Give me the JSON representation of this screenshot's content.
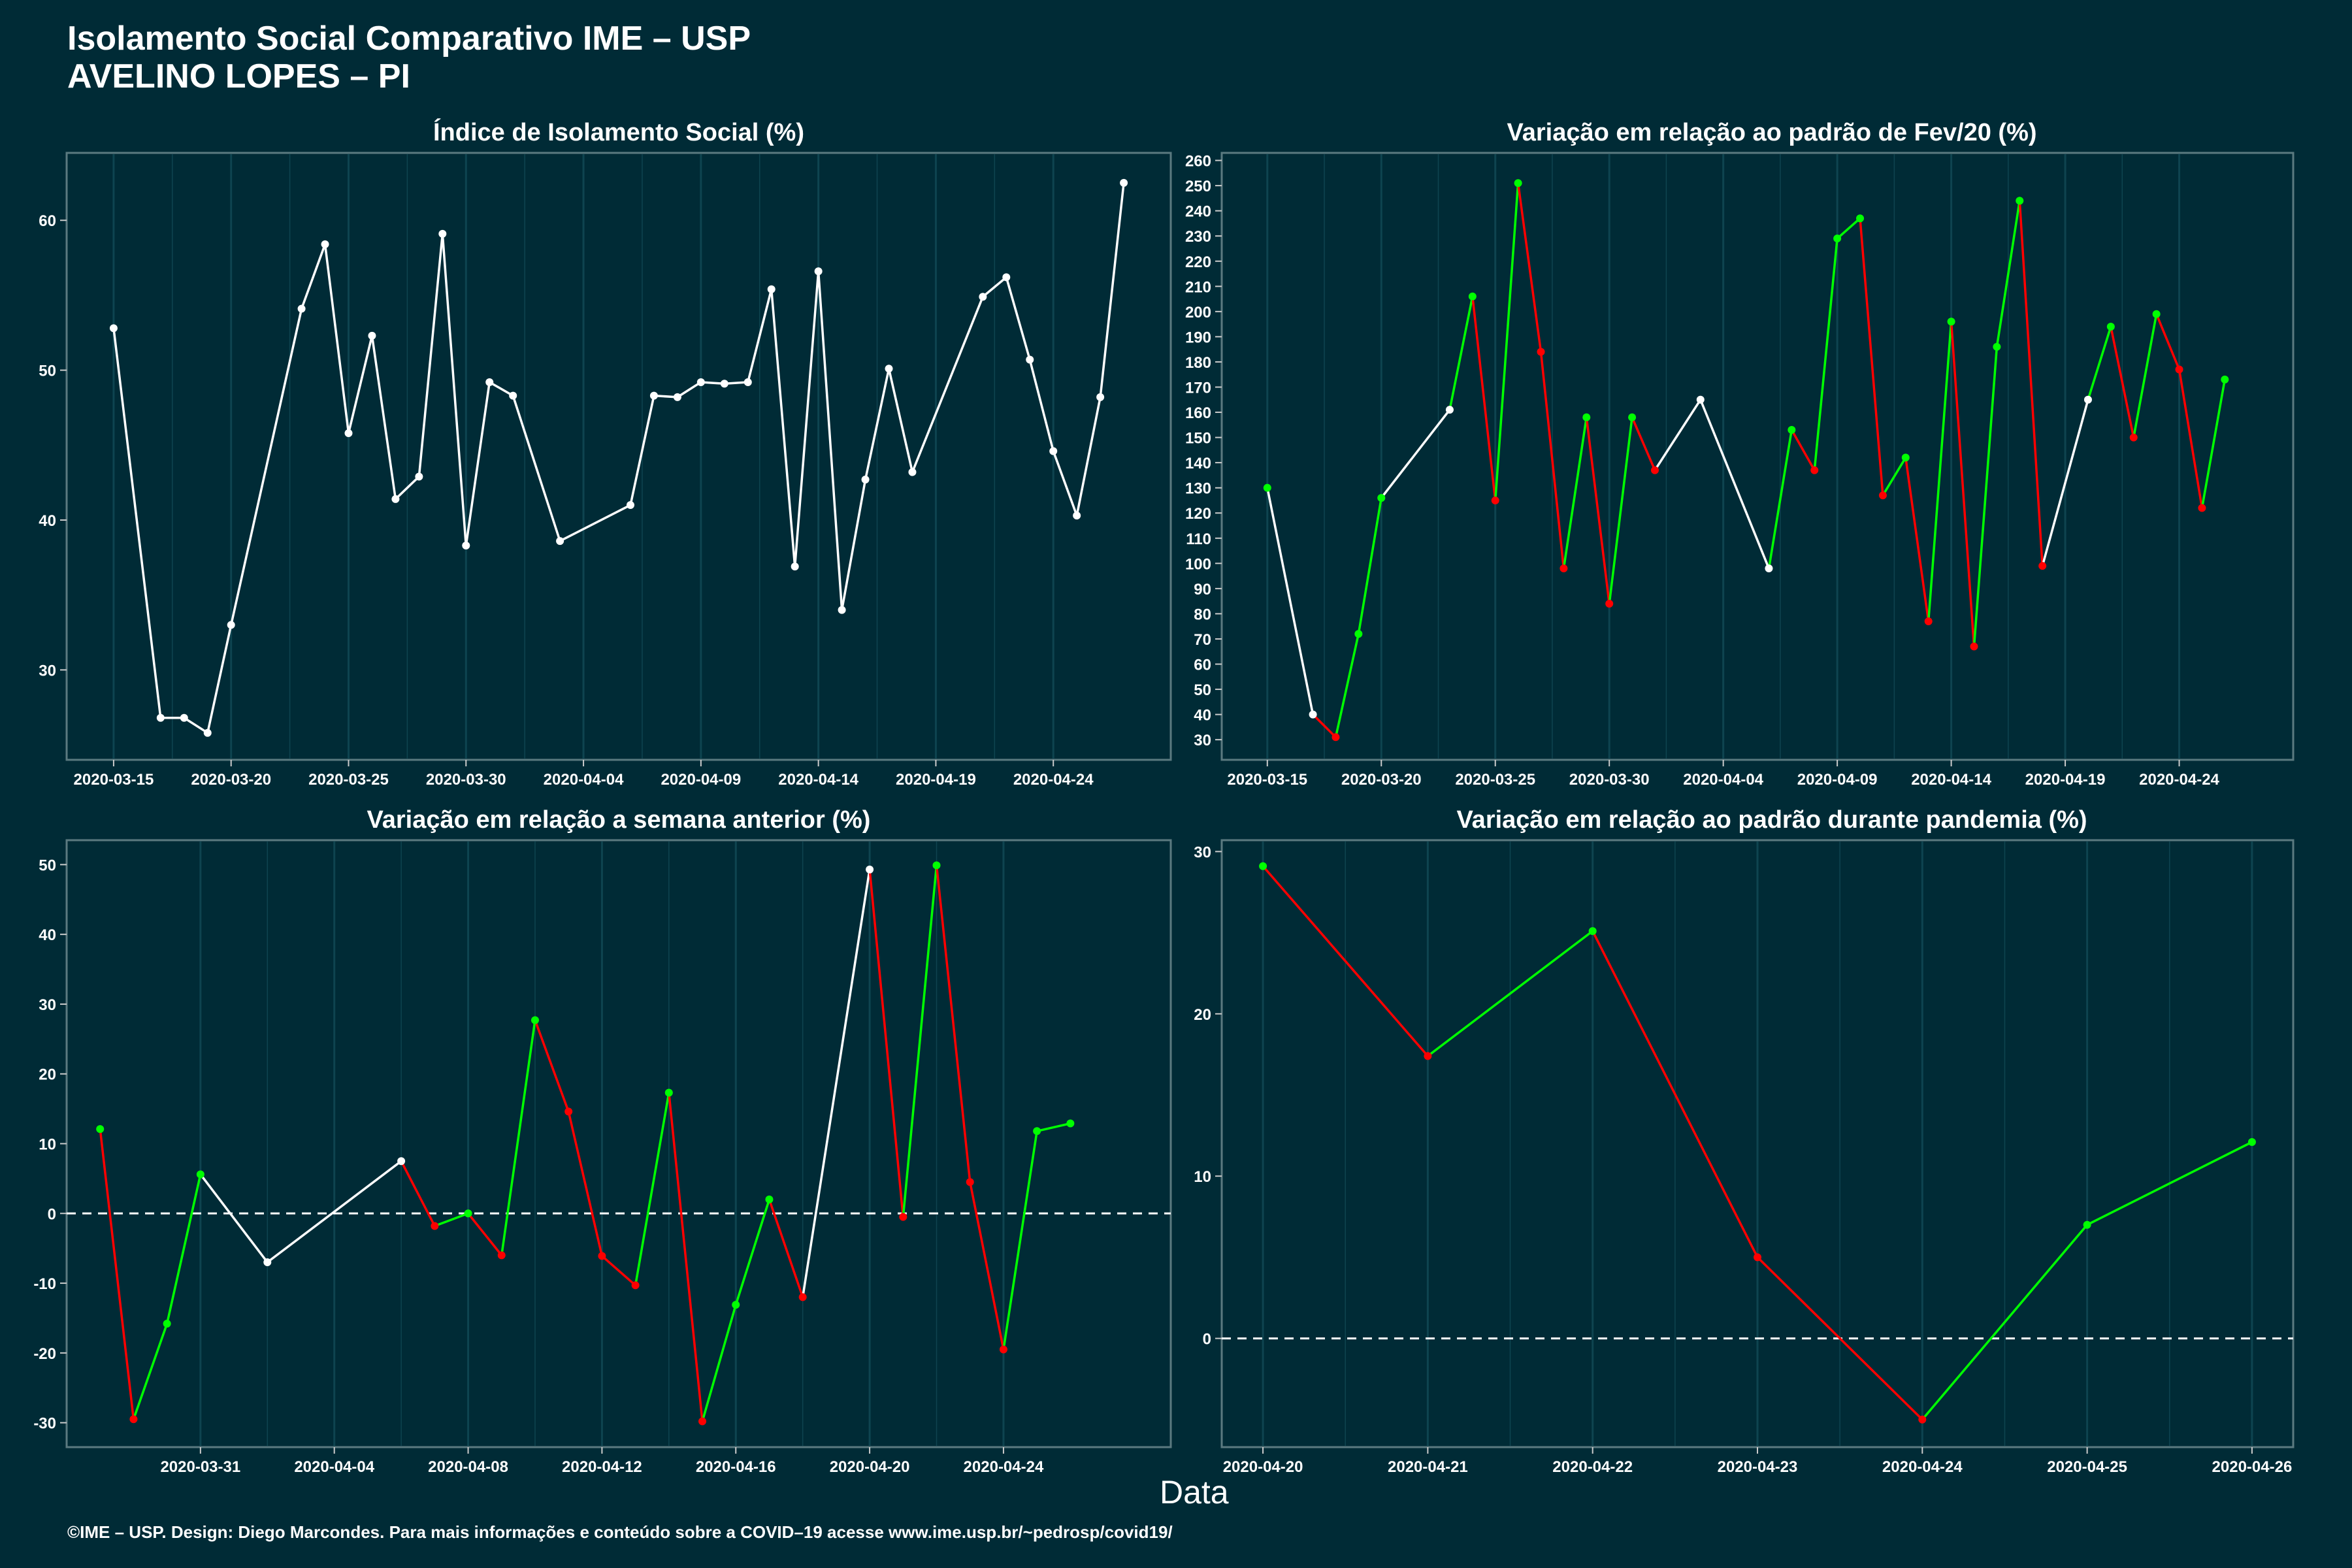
{
  "header": {
    "title": "Isolamento Social Comparativo IME – USP",
    "subtitle": "AVELINO LOPES – PI"
  },
  "x_caption": "Data",
  "footer": "©IME – USP. Design: Diego Marcondes. Para mais informações e conteúdo sobre a COVID–19 acesse www.ime.usp.br/~pedrosp/covid19/",
  "colors": {
    "background": "#002b36",
    "up": "#00ff00",
    "down": "#ff0000",
    "neutral": "#ffffff",
    "grid": "#0e4450"
  },
  "chart_data": [
    {
      "type": "line",
      "title": "Índice de Isolamento Social (%)",
      "xlabel": "",
      "ylabel": "",
      "xlim": [
        "2020-03-13",
        "2020-04-29"
      ],
      "ylim": [
        24,
        64.5
      ],
      "yticks": [
        30,
        40,
        50,
        60
      ],
      "xticks": [
        "2020-03-15",
        "2020-03-20",
        "2020-03-25",
        "2020-03-30",
        "2020-04-04",
        "2020-04-09",
        "2020-04-14",
        "2020-04-19",
        "2020-04-24"
      ],
      "colored": false,
      "points": [
        [
          "2020-03-15",
          52.8
        ],
        [
          "2020-03-17",
          26.8
        ],
        [
          "2020-03-18",
          26.8
        ],
        [
          "2020-03-19",
          25.8
        ],
        [
          "2020-03-20",
          33.0
        ],
        [
          "2020-03-23",
          54.1
        ],
        [
          "2020-03-24",
          58.4
        ],
        [
          "2020-03-25",
          45.8
        ],
        [
          "2020-03-26",
          52.3
        ],
        [
          "2020-03-27",
          41.4
        ],
        [
          "2020-03-28",
          42.9
        ],
        [
          "2020-03-29",
          59.1
        ],
        [
          "2020-03-30",
          38.3
        ],
        [
          "2020-03-31",
          49.2
        ],
        [
          "2020-04-01",
          48.3
        ],
        [
          "2020-04-03",
          38.6
        ],
        [
          "2020-04-06",
          41.0
        ],
        [
          "2020-04-07",
          48.3
        ],
        [
          "2020-04-08",
          48.2
        ],
        [
          "2020-04-09",
          49.2
        ],
        [
          "2020-04-10",
          49.1
        ],
        [
          "2020-04-11",
          49.2
        ],
        [
          "2020-04-12",
          55.4
        ],
        [
          "2020-04-13",
          36.9
        ],
        [
          "2020-04-14",
          56.6
        ],
        [
          "2020-04-15",
          34.0
        ],
        [
          "2020-04-16",
          42.7
        ],
        [
          "2020-04-17",
          50.1
        ],
        [
          "2020-04-18",
          43.2
        ],
        [
          "2020-04-21",
          54.9
        ],
        [
          "2020-04-22",
          56.2
        ],
        [
          "2020-04-23",
          50.7
        ],
        [
          "2020-04-24",
          44.6
        ],
        [
          "2020-04-25",
          40.3
        ],
        [
          "2020-04-26",
          48.2
        ],
        [
          "2020-04-27",
          62.5
        ]
      ]
    },
    {
      "type": "line",
      "title": "Variação em relação ao padrão de Fev/20 (%)",
      "xlabel": "",
      "ylabel": "",
      "xlim": [
        "2020-03-13",
        "2020-04-29"
      ],
      "ylim": [
        22,
        263
      ],
      "yticks": [
        30,
        40,
        50,
        60,
        70,
        80,
        90,
        100,
        110,
        120,
        130,
        140,
        150,
        160,
        170,
        180,
        190,
        200,
        210,
        220,
        230,
        240,
        250,
        260
      ],
      "xticks": [
        "2020-03-15",
        "2020-03-20",
        "2020-03-25",
        "2020-03-30",
        "2020-04-04",
        "2020-04-09",
        "2020-04-14",
        "2020-04-19",
        "2020-04-24"
      ],
      "colored": true,
      "points": [
        [
          "2020-03-15",
          130
        ],
        [
          "2020-03-17",
          40
        ],
        [
          "2020-03-18",
          31
        ],
        [
          "2020-03-19",
          72
        ],
        [
          "2020-03-20",
          126
        ],
        [
          "2020-03-23",
          161
        ],
        [
          "2020-03-24",
          206
        ],
        [
          "2020-03-25",
          125
        ],
        [
          "2020-03-26",
          251
        ],
        [
          "2020-03-27",
          184
        ],
        [
          "2020-03-28",
          98
        ],
        [
          "2020-03-29",
          158
        ],
        [
          "2020-03-30",
          84
        ],
        [
          "2020-03-31",
          158
        ],
        [
          "2020-04-01",
          137
        ],
        [
          "2020-04-03",
          165
        ],
        [
          "2020-04-06",
          98
        ],
        [
          "2020-04-07",
          153
        ],
        [
          "2020-04-08",
          137
        ],
        [
          "2020-04-09",
          229
        ],
        [
          "2020-04-10",
          237
        ],
        [
          "2020-04-11",
          127
        ],
        [
          "2020-04-12",
          142
        ],
        [
          "2020-04-13",
          77
        ],
        [
          "2020-04-14",
          196
        ],
        [
          "2020-04-15",
          67
        ],
        [
          "2020-04-16",
          186
        ],
        [
          "2020-04-17",
          244
        ],
        [
          "2020-04-18",
          99
        ],
        [
          "2020-04-20",
          165
        ],
        [
          "2020-04-21",
          194
        ],
        [
          "2020-04-22",
          150
        ],
        [
          "2020-04-23",
          199
        ],
        [
          "2020-04-24",
          177
        ],
        [
          "2020-04-25",
          122
        ],
        [
          "2020-04-26",
          173
        ]
      ]
    },
    {
      "type": "line",
      "title": "Variação em relação a semana anterior (%)",
      "xlabel": "",
      "ylabel": "",
      "xlim": [
        "2020-03-27",
        "2020-04-29"
      ],
      "ylim": [
        -33.5,
        53.5
      ],
      "yticks": [
        -30,
        -20,
        -10,
        0,
        10,
        20,
        30,
        40,
        50
      ],
      "xticks": [
        "2020-03-31",
        "2020-04-04",
        "2020-04-08",
        "2020-04-12",
        "2020-04-16",
        "2020-04-20",
        "2020-04-24"
      ],
      "colored": true,
      "zero_line": true,
      "points": [
        [
          "2020-03-28",
          12.1
        ],
        [
          "2020-03-29",
          -29.5
        ],
        [
          "2020-03-30",
          -15.8
        ],
        [
          "2020-03-31",
          5.6
        ],
        [
          "2020-04-02",
          -7.0
        ],
        [
          "2020-04-06",
          7.5
        ],
        [
          "2020-04-07",
          -1.8
        ],
        [
          "2020-04-08",
          0.0
        ],
        [
          "2020-04-09",
          -6.0
        ],
        [
          "2020-04-10",
          27.7
        ],
        [
          "2020-04-11",
          14.6
        ],
        [
          "2020-04-12",
          -6.1
        ],
        [
          "2020-04-13",
          -10.3
        ],
        [
          "2020-04-14",
          17.3
        ],
        [
          "2020-04-15",
          -29.8
        ],
        [
          "2020-04-16",
          -13.1
        ],
        [
          "2020-04-17",
          2.0
        ],
        [
          "2020-04-18",
          -12.0
        ],
        [
          "2020-04-20",
          49.3
        ],
        [
          "2020-04-21",
          -0.5
        ],
        [
          "2020-04-22",
          49.9
        ],
        [
          "2020-04-23",
          4.5
        ],
        [
          "2020-04-24",
          -19.5
        ],
        [
          "2020-04-25",
          11.8
        ],
        [
          "2020-04-26",
          12.9
        ]
      ]
    },
    {
      "type": "line",
      "title": "Variação em relação ao padrão durante pandemia (%)",
      "xlabel": "",
      "ylabel": "",
      "xlim": [
        "2020-04-19T18:00",
        "2020-04-26T06:00"
      ],
      "ylim": [
        -6.7,
        30.7
      ],
      "yticks": [
        0,
        10,
        20,
        30
      ],
      "xticks": [
        "2020-04-20",
        "2020-04-21",
        "2020-04-22",
        "2020-04-23",
        "2020-04-24",
        "2020-04-25",
        "2020-04-26"
      ],
      "colored": true,
      "zero_line": true,
      "points": [
        [
          "2020-04-20",
          29.1
        ],
        [
          "2020-04-21",
          17.4
        ],
        [
          "2020-04-22",
          25.1
        ],
        [
          "2020-04-23",
          5.0
        ],
        [
          "2020-04-24",
          -5.0
        ],
        [
          "2020-04-25",
          7.0
        ],
        [
          "2020-04-26",
          12.1
        ]
      ]
    }
  ]
}
